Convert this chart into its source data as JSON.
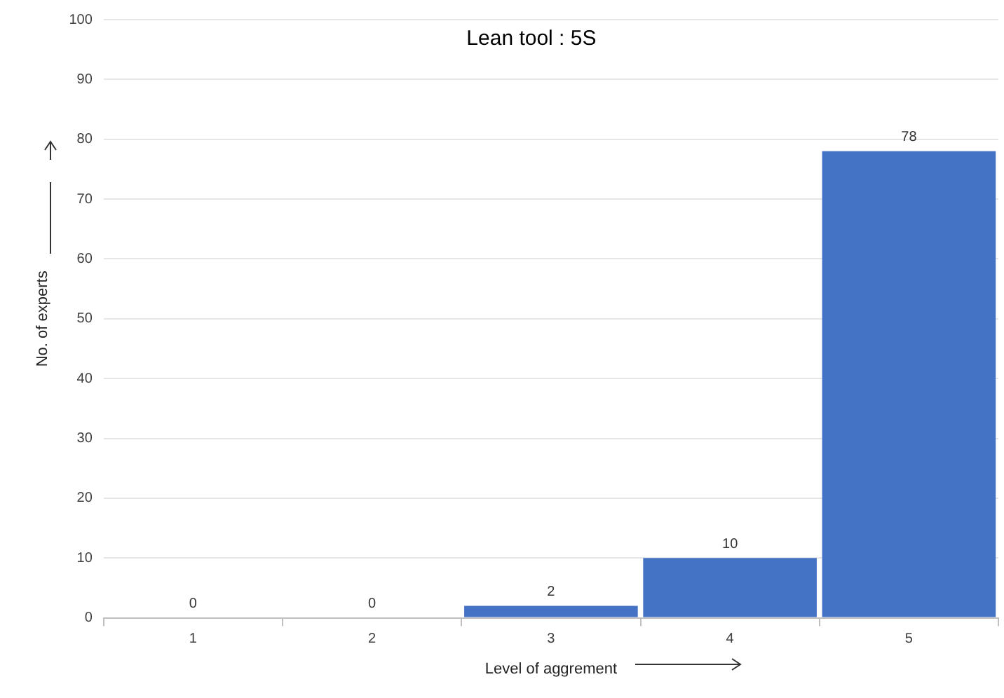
{
  "chart_data": {
    "type": "bar",
    "title": "Lean tool : 5S",
    "xlabel": "Level of aggrement",
    "ylabel": "No. of experts",
    "categories": [
      "1",
      "2",
      "3",
      "4",
      "5"
    ],
    "values": [
      0,
      0,
      2,
      10,
      78
    ],
    "color": "#4472c4",
    "ylim": [
      0,
      100
    ],
    "yticks": [
      0,
      10,
      20,
      30,
      40,
      50,
      60,
      70,
      80,
      90,
      100
    ],
    "grid": "y",
    "data_labels": true
  }
}
